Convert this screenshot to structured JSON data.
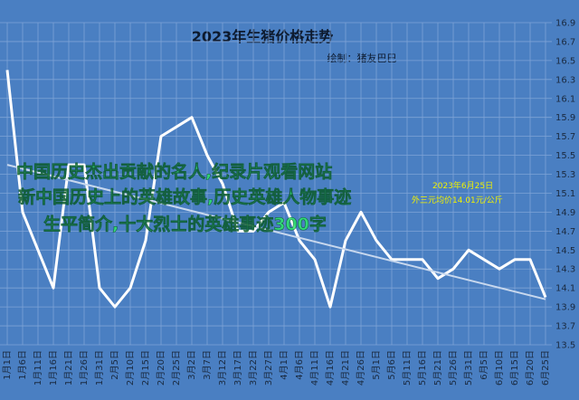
{
  "chart_data": {
    "type": "line",
    "title": "2023年生猪价格走势",
    "subtitle": "绘制：猪友巴巴",
    "annotations": [
      "2023年6月25日",
      "外三元均价14.01元/公斤"
    ],
    "overlay_text": [
      "中国历史杰出贡献的名人,纪录片观看网站",
      "新中国历史上的英雄故事,历史英雄人物事迹",
      "生平简介,十大烈士的英雄事迹300字"
    ],
    "categories": [
      "1月1日",
      "1月6日",
      "1月11日",
      "1月16日",
      "1月21日",
      "1月26日",
      "1月31日",
      "2月5日",
      "2月10日",
      "2月15日",
      "2月20日",
      "2月25日",
      "3月2日",
      "3月7日",
      "3月12日",
      "3月17日",
      "3月22日",
      "3月27日",
      "4月1日",
      "4月6日",
      "4月11日",
      "4月16日",
      "4月21日",
      "4月26日",
      "5月1日",
      "5月6日",
      "5月11日",
      "5月16日",
      "5月21日",
      "5月26日",
      "5月31日",
      "6月5日",
      "6月10日",
      "6月15日",
      "6月20日",
      "6月25日"
    ],
    "series": [
      {
        "color": "#ffffff",
        "values": [
          16.4,
          14.9,
          14.5,
          14.1,
          15.4,
          15.4,
          14.1,
          13.9,
          14.1,
          14.6,
          15.7,
          15.8,
          15.9,
          15.5,
          15.2,
          14.7,
          14.7,
          14.9,
          15.0,
          14.6,
          14.4,
          13.9,
          14.6,
          14.9,
          14.6,
          14.4,
          14.4,
          14.4,
          14.2,
          14.3,
          14.5,
          14.4,
          14.3,
          14.4,
          14.4,
          14.0
        ]
      },
      {
        "color": "#c8d8ee",
        "values": [
          15.4,
          null,
          null,
          null,
          null,
          null,
          null,
          null,
          null,
          null,
          null,
          null,
          null,
          null,
          null,
          null,
          null,
          null,
          null,
          null,
          null,
          null,
          null,
          null,
          null,
          null,
          null,
          null,
          null,
          null,
          null,
          null,
          null,
          null,
          null,
          13.98
        ]
      }
    ],
    "ylim": [
      13.5,
      16.9
    ],
    "yticks": [
      13.5,
      13.7,
      13.9,
      14.1,
      14.3,
      14.5,
      14.7,
      14.9,
      15.1,
      15.3,
      15.5,
      15.7,
      15.9,
      16.1,
      16.3,
      16.5,
      16.7,
      16.9
    ],
    "grid": true,
    "background": "#4a7fc2"
  }
}
